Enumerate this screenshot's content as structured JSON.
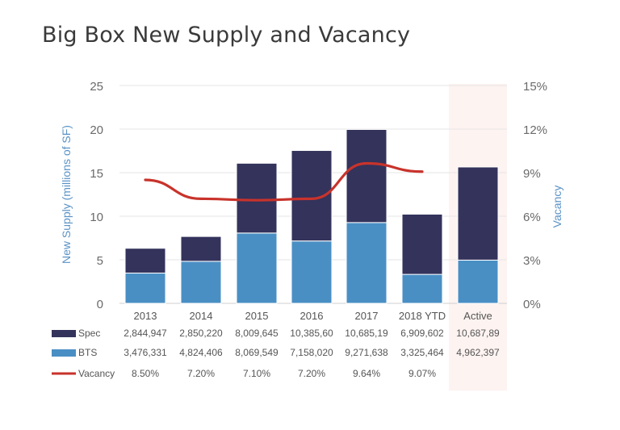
{
  "chart_data": {
    "type": "bar",
    "title": "Big Box New Supply and Vacancy",
    "ylabel": "New Supply (millions of SF)",
    "y2label": "Vacancy",
    "ylim": [
      0,
      25
    ],
    "y2lim": [
      0,
      0.15
    ],
    "yticks": [
      "0",
      "5",
      "10",
      "15",
      "20",
      "25"
    ],
    "y2ticks": [
      "0%",
      "3%",
      "6%",
      "9%",
      "12%",
      "15%"
    ],
    "categories": [
      "2013",
      "2014",
      "2015",
      "2016",
      "2017",
      "2018 YTD",
      "Active"
    ],
    "highlight_category": "Active",
    "stacked": true,
    "series": [
      {
        "name": "BTS",
        "kind": "bar",
        "color": "#4a8fc4",
        "values": [
          3.476331,
          4.824406,
          8.069549,
          7.15802,
          9.271638,
          3.325464,
          4.962397
        ],
        "table_values": [
          "3,476,331",
          "4,824,406",
          "8,069,549",
          "7,158,020",
          "9,271,638",
          "3,325,464",
          "4,962,397"
        ]
      },
      {
        "name": "Spec",
        "kind": "bar",
        "color": "#33335c",
        "values": [
          2.844947,
          2.85022,
          8.009645,
          10.3856,
          10.68519,
          6.909602,
          10.68789
        ],
        "table_values": [
          "2,844,947",
          "2,850,220",
          "8,009,645",
          "10,385,60",
          "10,685,19",
          "6,909,602",
          "10,687,89"
        ]
      },
      {
        "name": "Vacancy",
        "kind": "line",
        "axis": "y2",
        "color": "#c8332b",
        "values": [
          0.085,
          0.072,
          0.071,
          0.072,
          0.0964,
          0.0907,
          null
        ],
        "table_values": [
          "8.50%",
          "7.20%",
          "7.10%",
          "7.20%",
          "9.64%",
          "9.07%",
          ""
        ]
      }
    ],
    "table_row_order": [
      "Spec",
      "BTS",
      "Vacancy"
    ],
    "grid": true,
    "legend": "data table rows below chart"
  }
}
